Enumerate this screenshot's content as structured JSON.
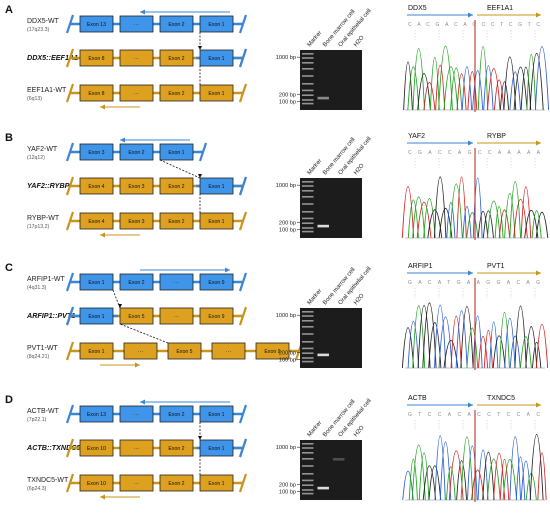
{
  "figure": {
    "lanes": [
      "Marker",
      "Bone marrow cell",
      "Oral epithelial cell",
      "H2O"
    ],
    "panels": [
      {
        "letter": "A",
        "top": 0,
        "geneA": {
          "name": "DDX5-WT",
          "locus": "(17q23.3)",
          "color": "#3a86d6",
          "exons": [
            "Exon 13",
            "···",
            "Exon 2",
            "Exon 1"
          ],
          "arrow": "left"
        },
        "fusion": {
          "name": "DDX5::EEF1A1",
          "exons": [
            "Exon 8",
            "···",
            "Exon 2",
            "Exon 1"
          ],
          "blue_from": 3
        },
        "geneB": {
          "name": "EEF1A1-WT",
          "locus": "(6q13)",
          "color": "#c8941b",
          "exons": [
            "Exon 8",
            "···",
            "Exon 2",
            "Exon 1"
          ],
          "arrow": "left"
        },
        "gel": {
          "ladder": [
            "1000 bp",
            "200 bp",
            "100 bp"
          ]
        },
        "chrom": {
          "left": "DDX5",
          "right": "EEF1A1",
          "seq": "CACGACACCCTCGTC"
        }
      },
      {
        "letter": "B",
        "top": 128,
        "geneA": {
          "name": "YAF2-WT",
          "locus": "(12q12)",
          "color": "#3a86d6",
          "exons": [
            "Exon 3",
            "Exon 2",
            "Exon 1"
          ],
          "arrow": "left"
        },
        "fusion": {
          "name": "YAF2::RYBP",
          "exons": [
            "Exon 4",
            "Exon 3",
            "Exon 2",
            "Exon 1"
          ],
          "blue_from": 3
        },
        "geneB": {
          "name": "RYBP-WT",
          "locus": "(17p13.2)",
          "color": "#c8941b",
          "exons": [
            "Exon 4",
            "Exon 3",
            "Exon 2",
            "Exon 1"
          ],
          "arrow": "left"
        },
        "gel": {
          "ladder": [
            "1000 bp",
            "200 bp",
            "100 bp"
          ]
        },
        "chrom": {
          "left": "YAF2",
          "right": "RYBP",
          "seq": "CGACCAGCCAAAAA"
        }
      },
      {
        "letter": "C",
        "top": 258,
        "geneA": {
          "name": "ARFIP1-WT",
          "locus": "(4q31.3)",
          "color": "#3a86d6",
          "exons": [
            "Exon 1",
            "Exon 2",
            "···",
            "Exon 9"
          ],
          "arrow": "right"
        },
        "fusion": {
          "name": "ARFIP1::PVT1",
          "exons": [
            "Exon 1",
            "Exon 5",
            "···",
            "Exon 9"
          ],
          "blue_from": 0
        },
        "geneB": {
          "name": "PVT1-WT",
          "locus": "(8q24.21)",
          "color": "#c8941b",
          "exons": [
            "Exon 1",
            "···",
            "Exon 5",
            "···",
            "Exon 9"
          ],
          "arrow": "right"
        },
        "gel": {
          "ladder": [
            "1000 bp",
            "200 bp",
            "100 bp"
          ]
        },
        "chrom": {
          "left": "ARFIP1",
          "right": "PVT1",
          "seq": "GACATGAAGGACAG"
        }
      },
      {
        "letter": "D",
        "top": 390,
        "geneA": {
          "name": "ACTB-WT",
          "locus": "(7p22.1)",
          "color": "#3a86d6",
          "exons": [
            "Exon 13",
            "···",
            "Exon 2",
            "Exon 1"
          ],
          "arrow": "left"
        },
        "fusion": {
          "name": "ACTB::TXNDC5",
          "exons": [
            "Exon 10",
            "···",
            "Exon 2",
            "Exon 1"
          ],
          "blue_from": 3
        },
        "geneB": {
          "name": "TXNDC5-WT",
          "locus": "(6p24.3)",
          "color": "#c8941b",
          "exons": [
            "Exon 10",
            "···",
            "Exon 2",
            "Exon 1"
          ],
          "arrow": "left"
        },
        "gel": {
          "ladder": [
            "1000 bp",
            "200 bp",
            "100 bp"
          ]
        },
        "chrom": {
          "left": "ACTB",
          "right": "TXNDC5",
          "seq": "GTCCACACCTCCAC"
        }
      }
    ]
  }
}
